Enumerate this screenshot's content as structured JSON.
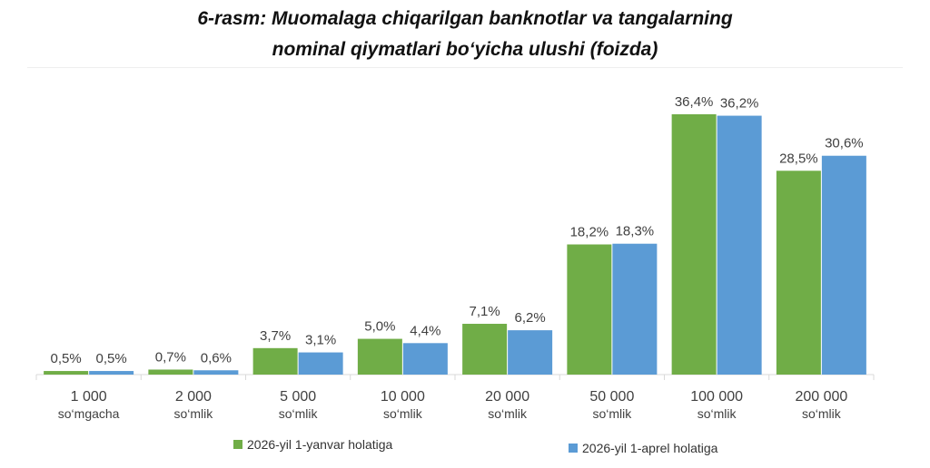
{
  "title_line1": "6-rasm: Muomalaga chiqarilgan banknotlar va tangalarning",
  "title_line2": "nominal qiymatlari bo‘yicha ulushi (foizda)",
  "chart_data": {
    "type": "bar",
    "categories": [
      [
        "1 000",
        "so‘mgacha"
      ],
      [
        "2 000",
        "so‘mlik"
      ],
      [
        "5 000",
        "so‘mlik"
      ],
      [
        "10 000",
        "so‘mlik"
      ],
      [
        "20 000",
        "so‘mlik"
      ],
      [
        "50 000",
        "so‘mlik"
      ],
      [
        "100 000",
        "so‘mlik"
      ],
      [
        "200 000",
        "so‘mlik"
      ]
    ],
    "series": [
      {
        "name": "2026-yil 1-yanvar holatiga",
        "color": "#70ad47",
        "values": [
          0.5,
          0.7,
          3.7,
          5.0,
          7.1,
          18.2,
          36.4,
          28.5
        ],
        "labels": [
          "0,5%",
          "0,7%",
          "3,7%",
          "5,0%",
          "7,1%",
          "18,2%",
          "36,4%",
          "28,5%"
        ]
      },
      {
        "name": "2026-yil 1-aprel holatiga",
        "color": "#5b9bd5",
        "values": [
          0.5,
          0.6,
          3.1,
          4.4,
          6.2,
          18.3,
          36.2,
          30.6
        ],
        "labels": [
          "0,5%",
          "0,6%",
          "3,1%",
          "4,4%",
          "6,2%",
          "18,3%",
          "36,2%",
          "30,6%"
        ]
      }
    ],
    "ylim": [
      0,
      36.4
    ],
    "grid": false,
    "legend_position": "bottom"
  }
}
